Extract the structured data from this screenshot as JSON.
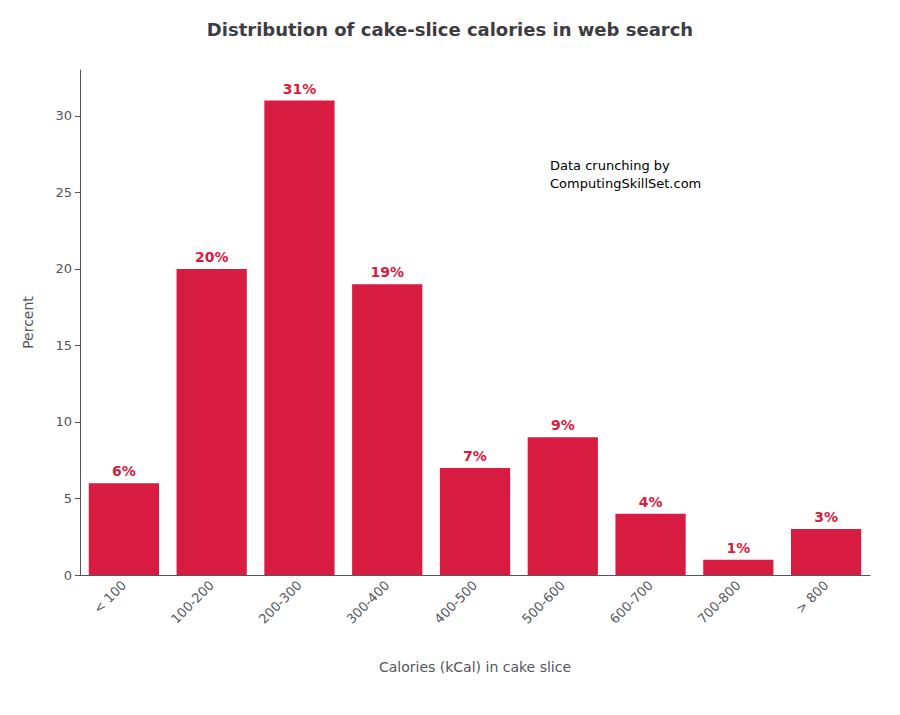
{
  "chart_data": {
    "type": "bar",
    "title": "Distribution of cake-slice calories in web search",
    "xlabel": "Calories (kCal) in cake slice",
    "ylabel": "Percent",
    "categories": [
      "< 100",
      "100-200",
      "200-300",
      "300-400",
      "400-500",
      "500-600",
      "600-700",
      "700-800",
      "> 800"
    ],
    "values": [
      6,
      20,
      31,
      19,
      7,
      9,
      4,
      1,
      3
    ],
    "value_labels": [
      "6%",
      "20%",
      "31%",
      "19%",
      "7%",
      "9%",
      "4%",
      "1%",
      "3%"
    ],
    "data_labels": true,
    "color": "#D81B40",
    "ylim": [
      0,
      33
    ],
    "yticks": [
      0,
      5,
      10,
      15,
      20,
      25,
      30
    ],
    "grid": false,
    "annotation": "Data crunching by\nComputingSkillSet.com"
  }
}
